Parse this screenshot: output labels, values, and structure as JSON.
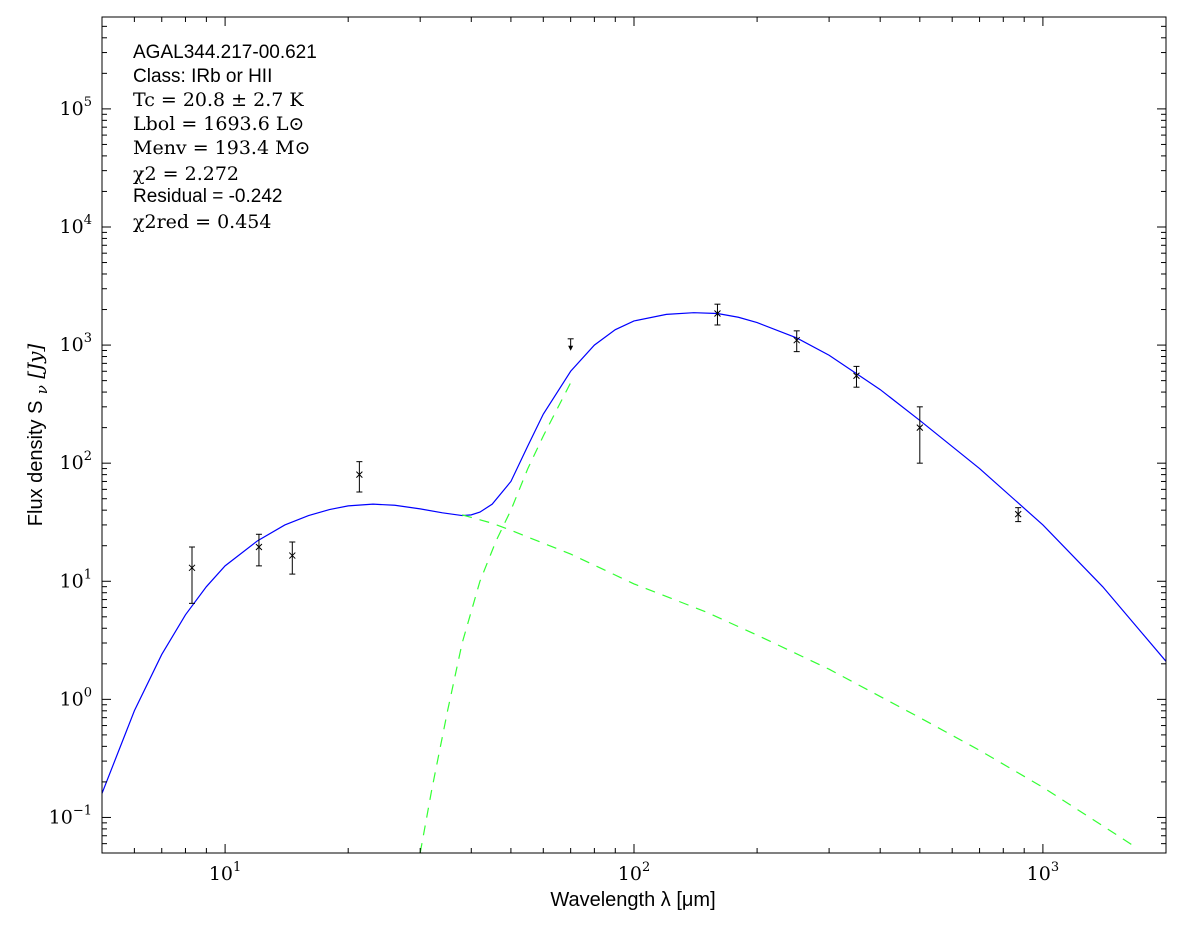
{
  "chart_data": {
    "type": "line",
    "xlabel": "Wavelength λ [μm]",
    "ylabel": "Flux density S",
    "ylabel_symbol": "ν",
    "ylabel_unit": " [Jy]",
    "xscale": "log",
    "yscale": "log",
    "xlim": [
      5.0,
      2000.0
    ],
    "ylim": [
      0.05,
      600000
    ],
    "grid": false,
    "x_ticks": [
      {
        "base": "10",
        "exp": "1",
        "value": 10
      },
      {
        "base": "10",
        "exp": "2",
        "value": 100
      },
      {
        "base": "10",
        "exp": "3",
        "value": 1000
      }
    ],
    "y_ticks": [
      {
        "base": "10",
        "exp": "−1",
        "value": 0.1
      },
      {
        "base": "10",
        "exp": "0",
        "value": 1
      },
      {
        "base": "10",
        "exp": "1",
        "value": 10
      },
      {
        "base": "10",
        "exp": "2",
        "value": 100
      },
      {
        "base": "10",
        "exp": "3",
        "value": 1000
      },
      {
        "base": "10",
        "exp": "4",
        "value": 10000
      },
      {
        "base": "10",
        "exp": "5",
        "value": 100000
      }
    ],
    "annotations": {
      "source": "AGAL344.217-00.621",
      "class": "Class: IRb or HII",
      "tc": "Tc = 20.8 ± 2.7 K",
      "lbol": "Lbol = 1693.6 L⊙",
      "menv": "Menv = 193.4 M⊙",
      "chi2": "χ2 = 2.272",
      "residual": "Residual = -0.242",
      "chi2red": "χ2red = 0.454"
    },
    "series": [
      {
        "role": "total-fit",
        "color": "#0000ff",
        "style": "solid",
        "x": [
          5.0,
          6.0,
          7.0,
          8.0,
          9.0,
          10.0,
          12.0,
          14.0,
          16.0,
          18.0,
          20.0,
          23.0,
          26.0,
          30.0,
          34.0,
          38.0,
          40.0,
          42.0,
          45.0,
          50.0,
          55.0,
          60.0,
          70.0,
          80.0,
          90.0,
          100.0,
          120.0,
          140.0,
          160.0,
          180.0,
          200.0,
          250.0,
          300.0,
          400.0,
          500.0,
          700.0,
          1000.0,
          1400.0,
          2000.0
        ],
        "y": [
          0.16,
          0.8,
          2.4,
          5.2,
          9.0,
          13.5,
          22.0,
          30.0,
          36.0,
          40.5,
          43.5,
          45.0,
          44.0,
          41.0,
          38.0,
          36.0,
          36.5,
          38.5,
          45.0,
          70.0,
          140.0,
          260.0,
          600.0,
          1000.0,
          1350.0,
          1600.0,
          1820.0,
          1880.0,
          1850.0,
          1720.0,
          1550.0,
          1150.0,
          820.0,
          420.0,
          230.0,
          90.0,
          30.0,
          9.0,
          2.1
        ]
      },
      {
        "role": "warm-component",
        "color": "#33ff33",
        "style": "dashed",
        "x": [
          38.0,
          45.0,
          50.0,
          60.0,
          70.0,
          100.0,
          150.0,
          200.0,
          300.0,
          500.0,
          700.0,
          1000.0,
          1400.0,
          1700.0
        ],
        "y": [
          36.5,
          31.0,
          27.0,
          21.0,
          17.0,
          9.5,
          5.5,
          3.5,
          1.8,
          0.7,
          0.37,
          0.18,
          0.085,
          0.055
        ]
      },
      {
        "role": "cold-component",
        "color": "#33ff33",
        "style": "dashed",
        "x": [
          30.0,
          32.0,
          35.0,
          38.0,
          42.0,
          46.0,
          50.0,
          55.0,
          60.0,
          70.0
        ],
        "y": [
          0.05,
          0.17,
          0.8,
          3.0,
          10.0,
          22.0,
          40.0,
          90.0,
          170.0,
          480.0
        ]
      }
    ],
    "points": [
      {
        "x": 8.3,
        "y": 13.0,
        "err_lo": 6.5,
        "err_hi": 19.5
      },
      {
        "x": 12.1,
        "y": 19.5,
        "err_lo": 13.5,
        "err_hi": 25.0
      },
      {
        "x": 14.6,
        "y": 16.5,
        "err_lo": 11.5,
        "err_hi": 21.5
      },
      {
        "x": 21.3,
        "y": 80.0,
        "err_lo": 57.0,
        "err_hi": 103.0
      },
      {
        "x": 160.0,
        "y": 1850.0,
        "err_lo": 1480.0,
        "err_hi": 2220.0
      },
      {
        "x": 250.0,
        "y": 1100.0,
        "err_lo": 880.0,
        "err_hi": 1320.0
      },
      {
        "x": 350.0,
        "y": 550.0,
        "err_lo": 440.0,
        "err_hi": 660.0
      },
      {
        "x": 500.0,
        "y": 200.0,
        "err_lo": 100.0,
        "err_hi": 300.0
      },
      {
        "x": 870.0,
        "y": 37.0,
        "err_lo": 32.0,
        "err_hi": 42.0
      }
    ],
    "upper_limits": [
      {
        "x": 70.0,
        "y": 1130.0
      }
    ]
  }
}
